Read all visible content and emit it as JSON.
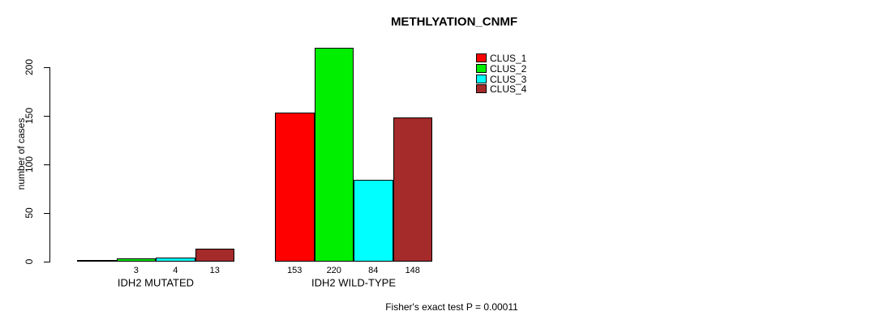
{
  "chart_data": {
    "type": "bar",
    "title": "METHLYATION_CNMF",
    "ylabel": "number of cases",
    "xlabel": "",
    "yticks": [
      0,
      50,
      100,
      150,
      200
    ],
    "ylim": [
      0,
      220
    ],
    "grid": false,
    "legend_position": "top-right",
    "groups": [
      "IDH2 MUTATED",
      "IDH2 WILD-TYPE"
    ],
    "series": [
      {
        "name": "CLUS_1",
        "color": "#FF0000",
        "values": [
          0,
          153
        ],
        "labels": [
          "",
          "153"
        ]
      },
      {
        "name": "CLUS_2",
        "color": "#00EE00",
        "values": [
          3,
          220
        ],
        "labels": [
          "3",
          "220"
        ]
      },
      {
        "name": "CLUS_3",
        "color": "#00FFFF",
        "values": [
          4,
          84
        ],
        "labels": [
          "4",
          "84"
        ]
      },
      {
        "name": "CLUS_4",
        "color": "#A52A2A",
        "values": [
          13,
          148
        ],
        "labels": [
          "13",
          "148"
        ]
      }
    ],
    "footnote": "Fisher's exact test P = 0.00011"
  }
}
